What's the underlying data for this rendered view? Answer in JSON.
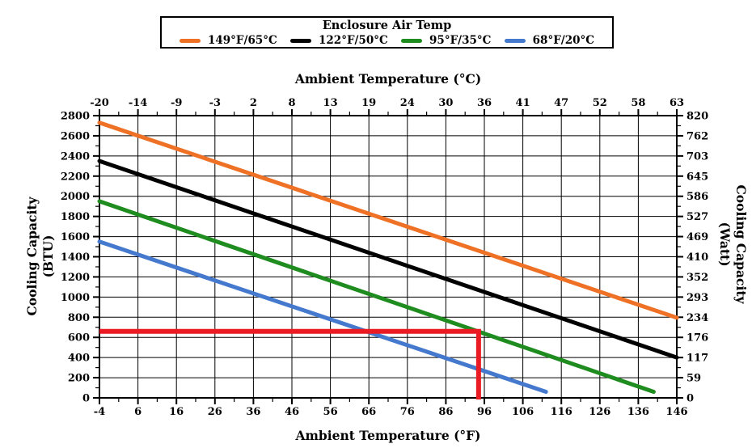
{
  "legend": {
    "title": "Enclosure Air Temp",
    "entries": [
      {
        "label": "149°F/65°C",
        "color": "#EE7125"
      },
      {
        "label": "122°F/50°C",
        "color": "#000000"
      },
      {
        "label": "95°F/35°C",
        "color": "#1E8C1E"
      },
      {
        "label": "68°F/20°C",
        "color": "#4579CE"
      }
    ]
  },
  "chart_data": {
    "type": "line",
    "title": "Enclosure Air Temp",
    "top_axis": {
      "label": "Ambient Temperature (°C)",
      "ticks": [
        -20,
        -14,
        -9,
        -3,
        2,
        8,
        13,
        19,
        24,
        30,
        36,
        41,
        47,
        52,
        58,
        63
      ]
    },
    "bottom_axis": {
      "label": "Ambient Temperature (°F)",
      "range": [
        -4,
        146
      ],
      "ticks": [
        -4,
        6,
        16,
        26,
        36,
        46,
        56,
        66,
        76,
        86,
        96,
        106,
        116,
        126,
        136,
        146
      ],
      "minor_tick_step": 5
    },
    "left_axis": {
      "label": "Cooling Capacity (BTU)",
      "label_lines": [
        "Cooling Capacity",
        "(BTU)"
      ],
      "range": [
        0,
        2800
      ],
      "ticks": [
        0,
        200,
        400,
        600,
        800,
        1000,
        1200,
        1400,
        1600,
        1800,
        2000,
        2200,
        2400,
        2600,
        2800
      ],
      "minor_tick_step": 100
    },
    "right_axis": {
      "label": "Cooling Capacity (Watt)",
      "label_lines": [
        "Cooling Capacity",
        "(Watt)"
      ],
      "ticks": [
        0,
        59,
        117,
        176,
        234,
        293,
        352,
        410,
        469,
        527,
        586,
        645,
        703,
        762,
        820
      ]
    },
    "grid": true,
    "series": [
      {
        "name": "149°F/65°C",
        "color": "#EE7125",
        "points": [
          [
            -4,
            2730
          ],
          [
            146,
            795
          ]
        ]
      },
      {
        "name": "122°F/50°C",
        "color": "#000000",
        "points": [
          [
            -4,
            2350
          ],
          [
            146,
            400
          ]
        ]
      },
      {
        "name": "95°F/35°C",
        "color": "#1E8C1E",
        "points": [
          [
            -4,
            1950
          ],
          [
            140,
            60
          ]
        ]
      },
      {
        "name": "68°F/20°C",
        "color": "#4579CE",
        "points": [
          [
            -4,
            1550
          ],
          [
            112,
            60
          ]
        ]
      }
    ],
    "reference_marker": {
      "color": "#EA1B22",
      "ambient_f": 94.5,
      "cooling_btu": 660,
      "description": "Red reference line from left axis at 660 BTU across to 94.5 °F, then down to the °F axis"
    }
  }
}
